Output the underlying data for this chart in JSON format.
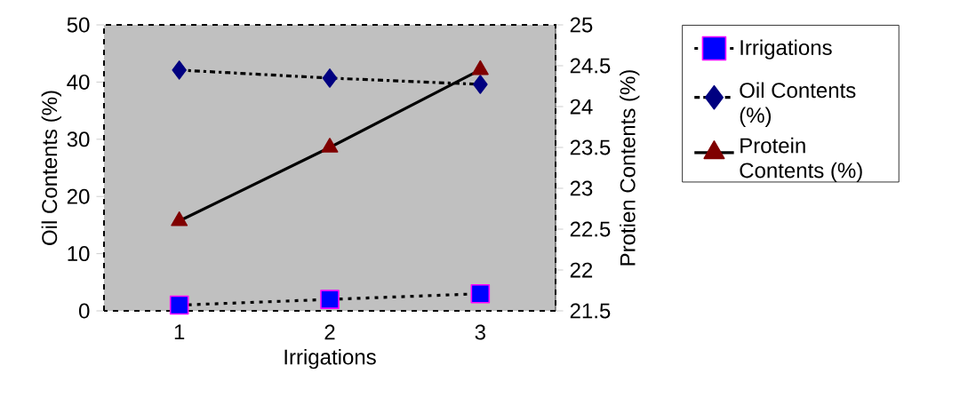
{
  "chart_data": {
    "type": "line",
    "xlabel": "Irrigations",
    "ylabel": "Oil Contents  (%)",
    "y2label": "Protien Contents (%)",
    "categories": [
      "1",
      "2",
      "3"
    ],
    "series": [
      {
        "name": "Irrigations",
        "color": "#0000ff",
        "values": [
          1,
          2,
          3
        ],
        "marker": "square",
        "line_style": "dotted"
      },
      {
        "name": "Oil Contents (%)",
        "color": "#000080",
        "values": [
          42.1,
          40.7,
          39.6
        ],
        "marker": "diamond",
        "line_style": "dashed"
      },
      {
        "name": "Protein Contents (%)",
        "color": "#800000",
        "values": [
          22.6,
          23.5,
          24.45
        ],
        "marker": "triangle",
        "line_style": "solid",
        "axis": "y2"
      }
    ],
    "ylim": [
      0,
      50
    ],
    "yticks": [
      0,
      10,
      20,
      30,
      40,
      50
    ],
    "y2lim": [
      21.5,
      25
    ],
    "y2ticks": [
      21.5,
      22,
      22.5,
      23,
      23.5,
      24,
      24.5,
      25
    ],
    "legend": "right",
    "grid": false
  }
}
